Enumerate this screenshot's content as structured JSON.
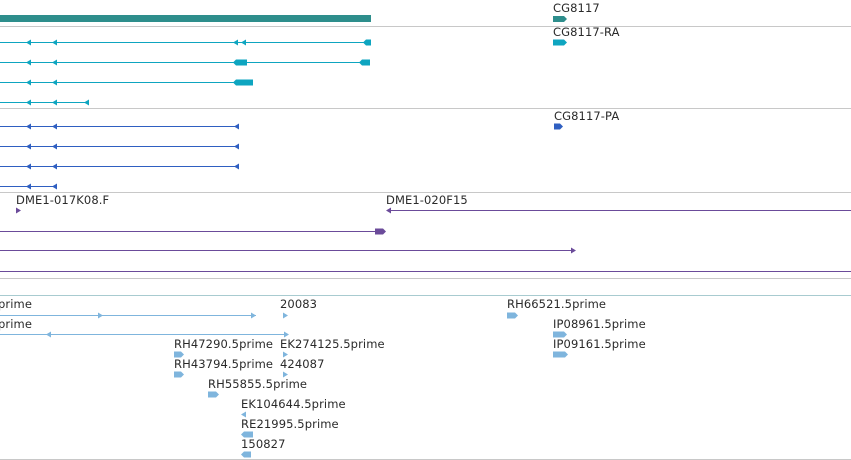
{
  "colors": {
    "gene": "#2e8e8c",
    "transcript": "#0ea5c0",
    "protein": "#2f5fc1",
    "clone": "#6b4b9a",
    "est": "#7fb5dd",
    "separator": "#c8c8c8"
  },
  "gene_track": {
    "label": "CG8117"
  },
  "transcript_track": {
    "label": "CG8117-RA"
  },
  "protein_track": {
    "label": "CG8117-PA"
  },
  "clone_track": {
    "labels": [
      "DME1-017K08.F",
      "DME1-020F15"
    ]
  },
  "est_track": {
    "labels": [
      "prime",
      "prime",
      "20083",
      "RH66521.5prime",
      "IP08961.5prime",
      "IP09161.5prime",
      "RH47290.5prime",
      "EK274125.5prime",
      "RH43794.5prime",
      "424087",
      "RH55855.5prime",
      "EK104644.5prime",
      "RE21995.5prime",
      "150827"
    ]
  }
}
